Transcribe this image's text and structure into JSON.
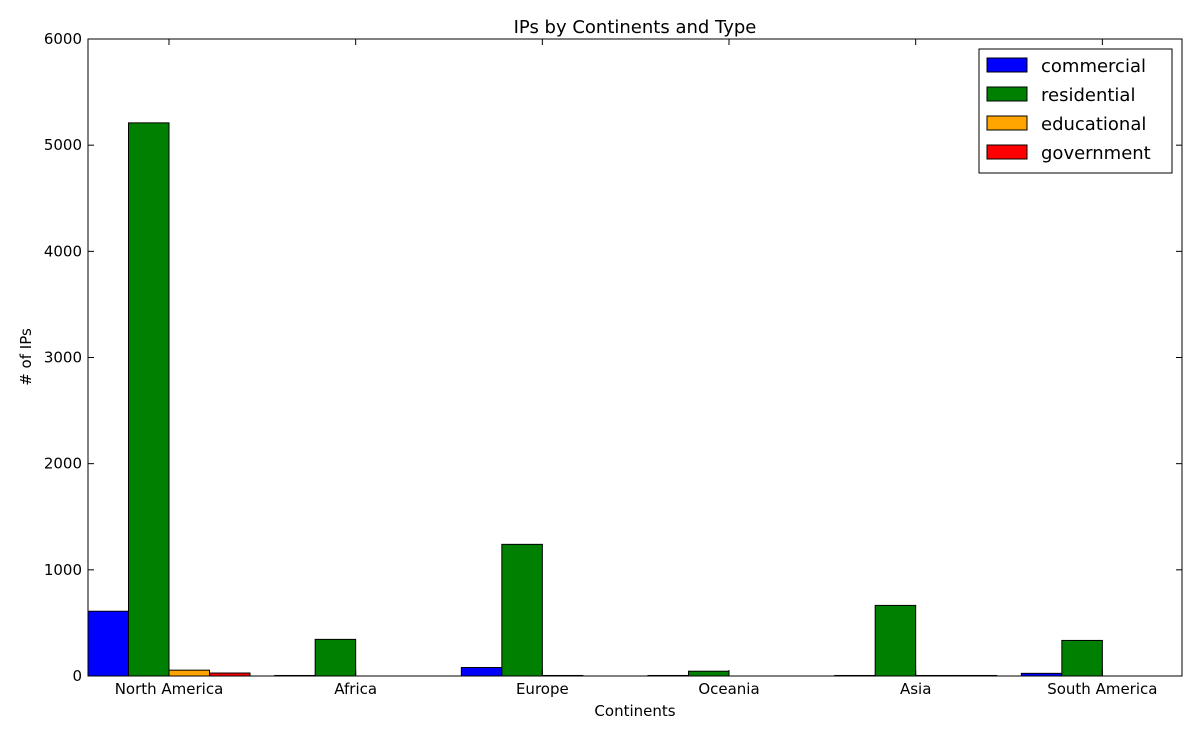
{
  "chart_data": {
    "type": "bar",
    "title": "IPs by Continents and Type",
    "xlabel": "Continents",
    "ylabel": "# of IPs",
    "ylim": [
      0,
      6000
    ],
    "yticks": [
      0,
      1000,
      2000,
      3000,
      4000,
      5000,
      6000
    ],
    "categories": [
      "North America",
      "Africa",
      "Europe",
      "Oceania",
      "Asia",
      "South America"
    ],
    "series": [
      {
        "name": "commercial",
        "color": "#0000ff",
        "values": [
          610,
          5,
          80,
          5,
          5,
          25
        ]
      },
      {
        "name": "residential",
        "color": "#008000",
        "values": [
          5210,
          345,
          1240,
          45,
          665,
          335
        ]
      },
      {
        "name": "educational",
        "color": "#ffa500",
        "values": [
          55,
          0,
          5,
          0,
          5,
          0
        ]
      },
      {
        "name": "government",
        "color": "#ff0000",
        "values": [
          28,
          0,
          0,
          0,
          5,
          0
        ]
      }
    ],
    "grid": false,
    "legend_position": "top-right"
  }
}
